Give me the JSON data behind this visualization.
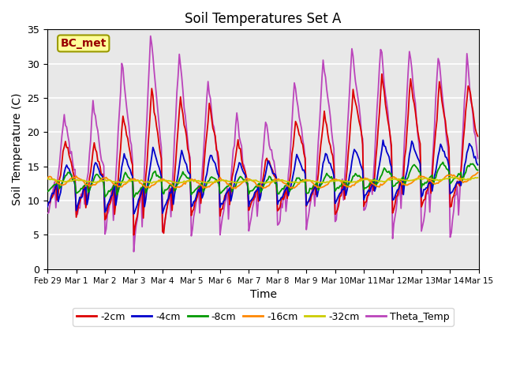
{
  "title": "Soil Temperatures Set A",
  "xlabel": "Time",
  "ylabel": "Soil Temperature (C)",
  "ylim": [
    0,
    35
  ],
  "annotation": "BC_met",
  "legend_labels": [
    "-2cm",
    "-4cm",
    "-8cm",
    "-16cm",
    "-32cm",
    "Theta_Temp"
  ],
  "line_colors": [
    "#dd0000",
    "#0000cc",
    "#009900",
    "#ff8800",
    "#cccc00",
    "#bb44bb"
  ],
  "bg_color": "#e8e8e8",
  "tick_dates": [
    "Feb 29",
    "Mar 1",
    "Mar 2",
    "Mar 3",
    "Mar 4",
    "Mar 5",
    "Mar 6",
    "Mar 7",
    "Mar 8",
    "Mar 9",
    "Mar 10",
    "Mar 11",
    "Mar 12",
    "Mar 13",
    "Mar 14",
    "Mar 15"
  ]
}
